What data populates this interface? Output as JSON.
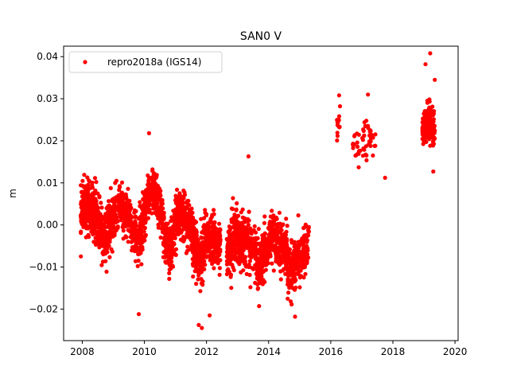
{
  "chart_data": {
    "type": "scatter",
    "title": "SAN0 V",
    "xlabel": "",
    "ylabel": "m",
    "xlim": [
      2007.4,
      2020.1
    ],
    "ylim": [
      -0.0275,
      0.0425
    ],
    "xticks": [
      2008,
      2010,
      2012,
      2014,
      2016,
      2018,
      2020
    ],
    "yticks": [
      -0.02,
      -0.01,
      0.0,
      0.01,
      0.02,
      0.03,
      0.04
    ],
    "xtick_labels": [
      "2008",
      "2010",
      "2012",
      "2014",
      "2016",
      "2018",
      "2020"
    ],
    "ytick_labels": [
      "−0.02",
      "−0.01",
      "0.00",
      "0.01",
      "0.02",
      "0.03",
      "0.04"
    ],
    "legend_position": "top-left",
    "grid": false,
    "series": [
      {
        "name": "repro2018a (IGS14)",
        "color": "#ff0000",
        "marker": "circle",
        "segments": [
          {
            "x_start": 2007.95,
            "x_end": 2008.45,
            "trend": [
              [
                2007.95,
                0.003
              ],
              [
                2008.2,
                0.005
              ],
              [
                2008.45,
                0.002
              ]
            ],
            "spread": 0.0055,
            "count": 260
          },
          {
            "x_start": 2008.45,
            "x_end": 2009.0,
            "trend": [
              [
                2008.45,
                0.002
              ],
              [
                2008.7,
                -0.004
              ],
              [
                2009.0,
                0.002
              ]
            ],
            "spread": 0.0055,
            "count": 250
          },
          {
            "x_start": 2009.0,
            "x_end": 2009.55,
            "trend": [
              [
                2009.0,
                0.002
              ],
              [
                2009.3,
                0.004
              ],
              [
                2009.55,
                0.002
              ]
            ],
            "spread": 0.0045,
            "count": 220
          },
          {
            "x_start": 2009.55,
            "x_end": 2010.05,
            "trend": [
              [
                2009.55,
                0.0
              ],
              [
                2009.8,
                -0.004
              ],
              [
                2010.05,
                0.004
              ]
            ],
            "spread": 0.0055,
            "count": 200
          },
          {
            "x_start": 2010.05,
            "x_end": 2010.6,
            "trend": [
              [
                2010.05,
                0.006
              ],
              [
                2010.3,
                0.008
              ],
              [
                2010.6,
                0.002
              ]
            ],
            "spread": 0.0045,
            "count": 230
          },
          {
            "x_start": 2010.6,
            "x_end": 2011.0,
            "trend": [
              [
                2010.6,
                -0.001
              ],
              [
                2010.8,
                -0.007
              ],
              [
                2011.0,
                0.0
              ]
            ],
            "spread": 0.005,
            "count": 180
          },
          {
            "x_start": 2011.0,
            "x_end": 2011.55,
            "trend": [
              [
                2011.0,
                0.002
              ],
              [
                2011.3,
                0.002
              ],
              [
                2011.55,
                -0.001
              ]
            ],
            "spread": 0.005,
            "count": 230
          },
          {
            "x_start": 2011.55,
            "x_end": 2012.0,
            "trend": [
              [
                2011.55,
                -0.004
              ],
              [
                2011.8,
                -0.008
              ],
              [
                2012.0,
                -0.004
              ]
            ],
            "spread": 0.006,
            "count": 210
          },
          {
            "x_start": 2012.0,
            "x_end": 2012.45,
            "trend": [
              [
                2012.0,
                -0.004
              ],
              [
                2012.25,
                -0.004
              ],
              [
                2012.45,
                -0.005
              ]
            ],
            "spread": 0.0055,
            "count": 190
          },
          {
            "x_start": 2012.65,
            "x_end": 2013.0,
            "trend": [
              [
                2012.65,
                -0.008
              ],
              [
                2012.85,
                -0.004
              ],
              [
                2013.0,
                -0.003
              ]
            ],
            "spread": 0.006,
            "count": 160
          },
          {
            "x_start": 2013.0,
            "x_end": 2013.6,
            "trend": [
              [
                2013.0,
                -0.003
              ],
              [
                2013.3,
                -0.004
              ],
              [
                2013.6,
                -0.006
              ]
            ],
            "spread": 0.0055,
            "count": 240
          },
          {
            "x_start": 2013.6,
            "x_end": 2014.0,
            "trend": [
              [
                2013.6,
                -0.01
              ],
              [
                2013.8,
                -0.008
              ],
              [
                2014.0,
                -0.004
              ]
            ],
            "spread": 0.0055,
            "count": 180
          },
          {
            "x_start": 2014.0,
            "x_end": 2014.6,
            "trend": [
              [
                2014.0,
                -0.003
              ],
              [
                2014.3,
                -0.004
              ],
              [
                2014.6,
                -0.006
              ]
            ],
            "spread": 0.005,
            "count": 230
          },
          {
            "x_start": 2014.6,
            "x_end": 2015.2,
            "trend": [
              [
                2014.6,
                -0.011
              ],
              [
                2014.85,
                -0.01
              ],
              [
                2015.2,
                -0.005
              ]
            ],
            "spread": 0.0055,
            "count": 220
          },
          {
            "x_start": 2015.2,
            "x_end": 2015.3,
            "trend": [
              [
                2015.2,
                -0.006
              ],
              [
                2015.3,
                -0.002
              ]
            ],
            "spread": 0.004,
            "count": 25
          },
          {
            "x_start": 2016.2,
            "x_end": 2016.3,
            "trend": [
              [
                2016.2,
                0.022
              ],
              [
                2016.3,
                0.025
              ]
            ],
            "spread": 0.0035,
            "count": 14
          },
          {
            "x_start": 2016.7,
            "x_end": 2017.45,
            "trend": [
              [
                2016.7,
                0.018
              ],
              [
                2017.0,
                0.02
              ],
              [
                2017.45,
                0.02
              ]
            ],
            "spread": 0.0035,
            "count": 50
          },
          {
            "x_start": 2018.95,
            "x_end": 2019.35,
            "trend": [
              [
                2018.95,
                0.022
              ],
              [
                2019.15,
                0.025
              ],
              [
                2019.35,
                0.022
              ]
            ],
            "spread": 0.004,
            "count": 200
          }
        ],
        "outliers": [
          [
            2009.82,
            -0.0212
          ],
          [
            2010.15,
            0.0218
          ],
          [
            2011.85,
            -0.0245
          ],
          [
            2011.75,
            -0.0238
          ],
          [
            2013.35,
            0.0163
          ],
          [
            2014.85,
            -0.0218
          ],
          [
            2017.75,
            0.0112
          ],
          [
            2019.2,
            0.0408
          ],
          [
            2019.05,
            0.0382
          ],
          [
            2019.35,
            0.0345
          ],
          [
            2017.2,
            0.031
          ],
          [
            2016.27,
            0.0308
          ],
          [
            2016.9,
            0.0137
          ],
          [
            2017.15,
            0.0165
          ],
          [
            2019.3,
            0.0127
          ],
          [
            2012.1,
            -0.0215
          ]
        ]
      }
    ]
  }
}
